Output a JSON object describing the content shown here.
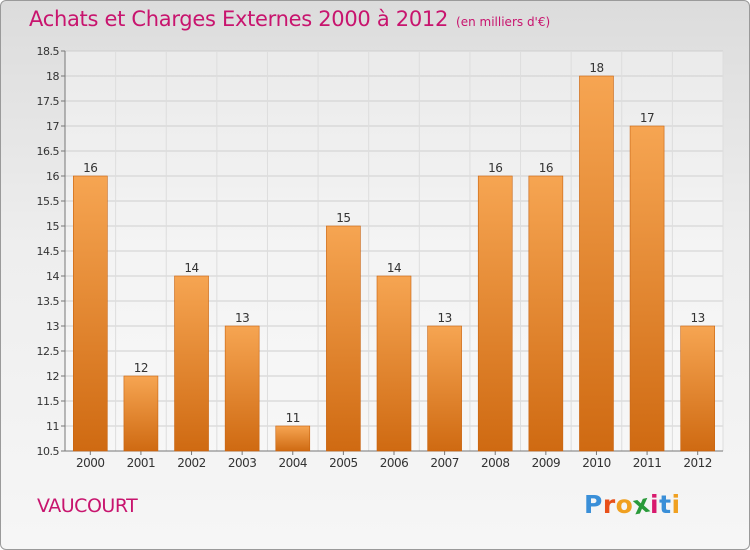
{
  "header": {
    "title": "Achats et Charges Externes 2000 à 2012",
    "unit": "(en milliers d'€)"
  },
  "commune": "VAUCOURT",
  "logo": {
    "letters": [
      "P",
      "r",
      "o",
      "x",
      "i",
      "t",
      "i"
    ],
    "colors": [
      "#3a8fd8",
      "#e8501a",
      "#f0a020",
      "#2a9a3a",
      "#d81a6e",
      "#3a8fd8",
      "#f0a020"
    ]
  },
  "colors": {
    "bar_top": "#f6a552",
    "bar_bottom": "#cf6a12",
    "title": "#c8146e"
  },
  "chart_data": {
    "type": "bar",
    "title": "Achats et Charges Externes 2000 à 2012",
    "subtitle": "(en milliers d'€)",
    "categories": [
      "2000",
      "2001",
      "2002",
      "2003",
      "2004",
      "2005",
      "2006",
      "2007",
      "2008",
      "2009",
      "2010",
      "2011",
      "2012"
    ],
    "values": [
      16,
      12,
      14,
      13,
      11,
      15,
      14,
      13,
      16,
      16,
      18,
      17,
      13
    ],
    "data_labels": [
      "16",
      "12",
      "14",
      "13",
      "11",
      "15",
      "14",
      "13",
      "16",
      "16",
      "18",
      "17",
      "13"
    ],
    "ylim": [
      10.5,
      18.5
    ],
    "yticks": [
      10.5,
      11,
      11.5,
      12,
      12.5,
      13,
      13.5,
      14,
      14.5,
      15,
      15.5,
      16,
      16.5,
      17,
      17.5,
      18,
      18.5
    ],
    "ytick_labels": [
      "10.5",
      "11",
      "11.5",
      "12",
      "12.5",
      "13",
      "13.5",
      "14",
      "14.5",
      "15",
      "15.5",
      "16",
      "16.5",
      "17",
      "17.5",
      "18",
      "18.5"
    ],
    "grid": true,
    "legend": "none"
  }
}
